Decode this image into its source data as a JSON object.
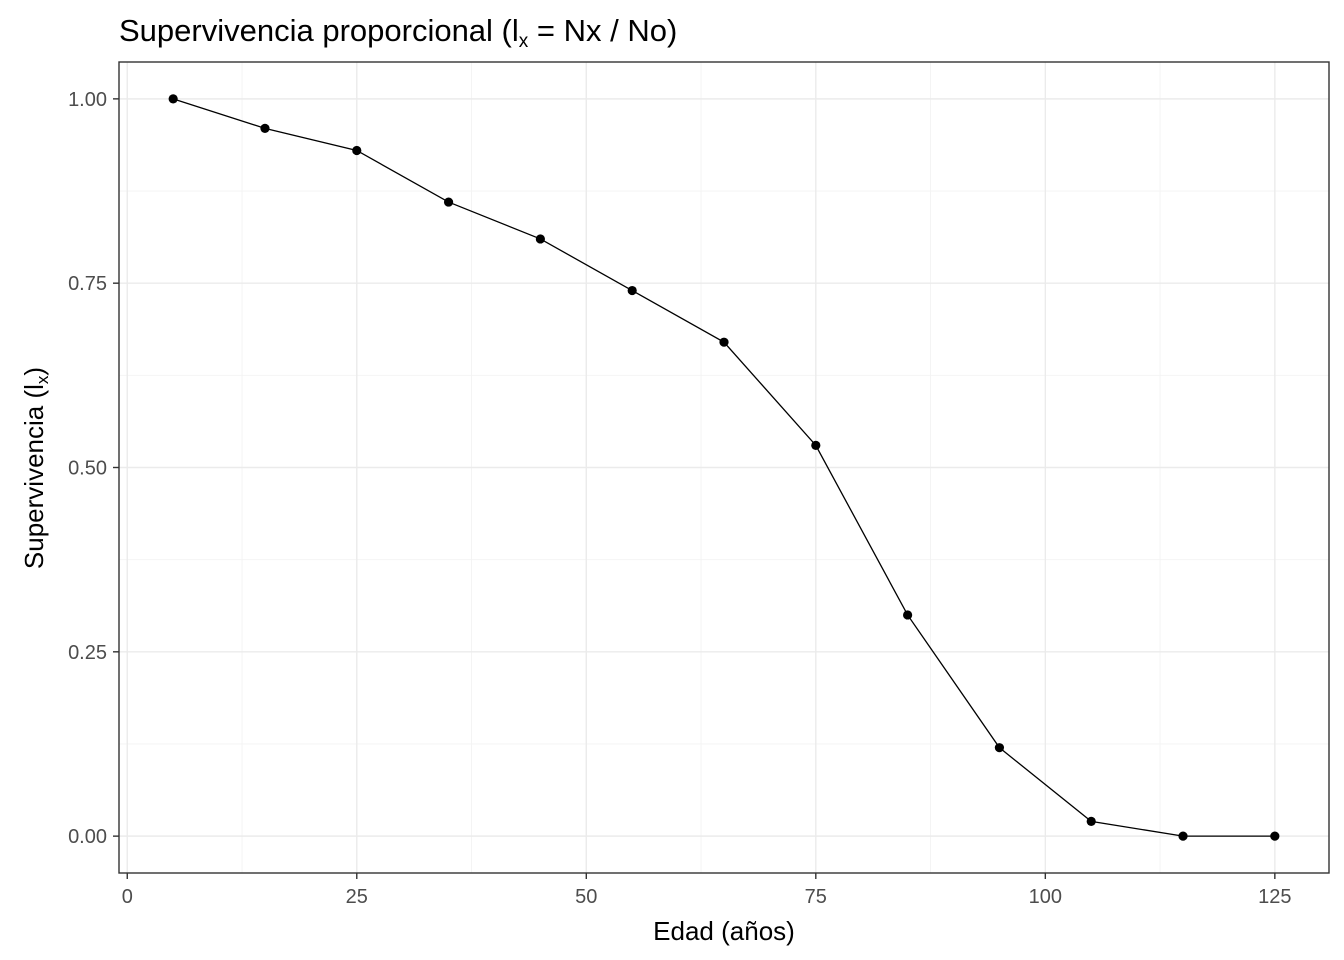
{
  "chart_data": {
    "type": "line",
    "title": "Supervivencia proporcional (l",
    "title_subscript": "x",
    "title_suffix": " = Nx / No)",
    "xlabel": "Edad (años)",
    "ylabel": "Supervivencia (l",
    "ylabel_subscript": "x",
    "ylabel_suffix": ")",
    "x": [
      5,
      15,
      25,
      35,
      45,
      55,
      65,
      75,
      85,
      95,
      105,
      115,
      125
    ],
    "series": [
      {
        "values": [
          1.0,
          0.96,
          0.93,
          0.86,
          0.81,
          0.74,
          0.67,
          0.53,
          0.3,
          0.12,
          0.02,
          0.0,
          0.0
        ]
      }
    ],
    "xlim": [
      -0.9,
      130.9
    ],
    "ylim": [
      -0.05,
      1.05
    ],
    "x_ticks": [
      0,
      25,
      50,
      75,
      100,
      125
    ],
    "x_tick_labels": [
      "0",
      "25",
      "50",
      "75",
      "100",
      "125"
    ],
    "y_ticks": [
      0.0,
      0.25,
      0.5,
      0.75,
      1.0
    ],
    "y_tick_labels": [
      "0.00",
      "0.25",
      "0.50",
      "0.75",
      "1.00"
    ],
    "x_minor_ticks": [
      12.5,
      37.5,
      62.5,
      87.5,
      112.5
    ],
    "y_minor_ticks": [
      0.125,
      0.375,
      0.625,
      0.875
    ],
    "grid": true,
    "legend": "none",
    "colors": {
      "line": "#000000",
      "point": "#000000",
      "panel_border": "#333333",
      "background": "#ffffff"
    }
  }
}
